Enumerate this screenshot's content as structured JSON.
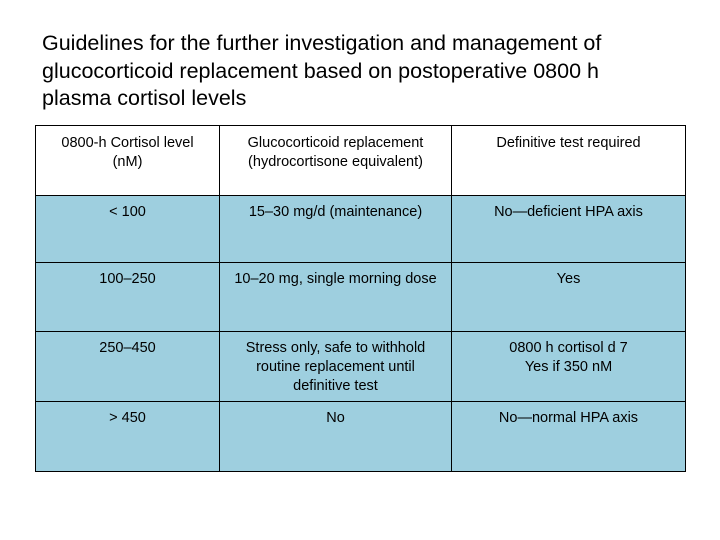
{
  "slide": {
    "title_lines": [
      "Guidelines for the further investigation and management of",
      "glucocorticoid replacement based on postoperative 0800 h",
      "plasma cortisol levels"
    ]
  },
  "table": {
    "headers": [
      [
        "0800-h Cortisol level",
        "(nM)"
      ],
      [
        "Glucocorticoid replacement",
        "(hydrocortisone equivalent)"
      ],
      [
        "Definitive test required"
      ]
    ],
    "rows": [
      [
        [
          "< 100"
        ],
        [
          "15–30 mg/d (maintenance)"
        ],
        [
          "No—deficient HPA axis"
        ]
      ],
      [
        [
          "100–250"
        ],
        [
          "10–20 mg, single morning dose"
        ],
        [
          "Yes"
        ]
      ],
      [
        [
          "250–450"
        ],
        [
          "Stress only, safe to withhold",
          "routine replacement until",
          "definitive test"
        ],
        [
          "0800 h cortisol d 7",
          "Yes if 350 nM"
        ]
      ],
      [
        [
          "> 450"
        ],
        [
          "No"
        ],
        [
          "No—normal HPA axis"
        ]
      ]
    ]
  }
}
